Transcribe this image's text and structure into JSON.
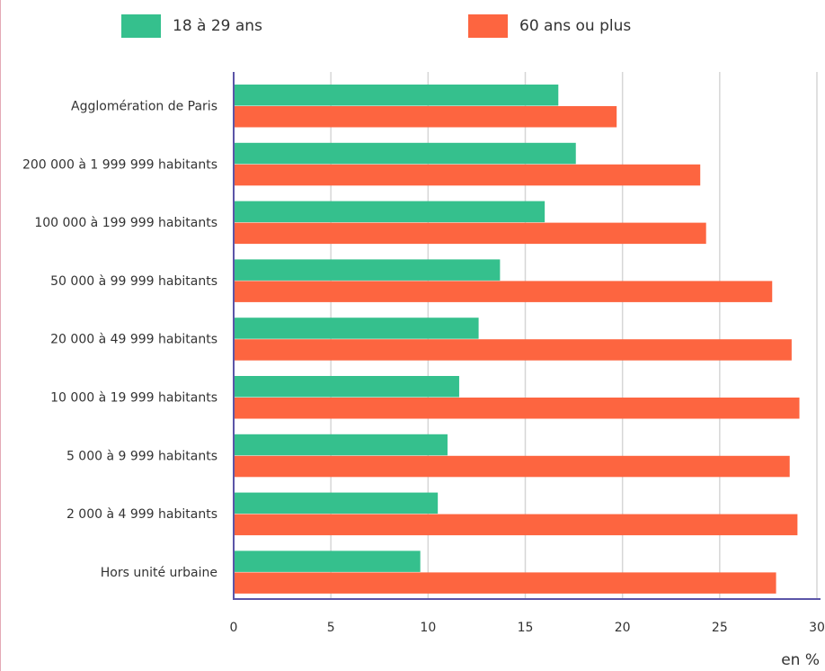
{
  "chart_data": {
    "type": "bar",
    "orientation": "horizontal",
    "categories": [
      "Agglomération de Paris",
      "200 000 à 1 999 999 habitants",
      "100 000 à 199 999 habitants",
      "50 000 à 99 999 habitants",
      "20 000 à 49 999 habitants",
      "10 000 à 19 999 habitants",
      "5 000 à 9 999 habitants",
      "2 000 à 4 999 habitants",
      "Hors unité urbaine"
    ],
    "series": [
      {
        "name": "18 à 29 ans",
        "color": "#35c08d",
        "values": [
          16.7,
          17.6,
          16.0,
          13.7,
          12.6,
          11.6,
          11.0,
          10.5,
          9.6
        ]
      },
      {
        "name": "60 ans ou plus",
        "color": "#fd6540",
        "values": [
          19.7,
          24.0,
          24.3,
          27.7,
          28.7,
          29.1,
          28.6,
          29.0,
          27.9
        ]
      }
    ],
    "xlim": [
      0,
      30
    ],
    "xticks": [
      "0",
      "5",
      "10",
      "15",
      "20",
      "25",
      "30"
    ],
    "unit_label": "en %",
    "grid": true,
    "legend_position": "top"
  }
}
